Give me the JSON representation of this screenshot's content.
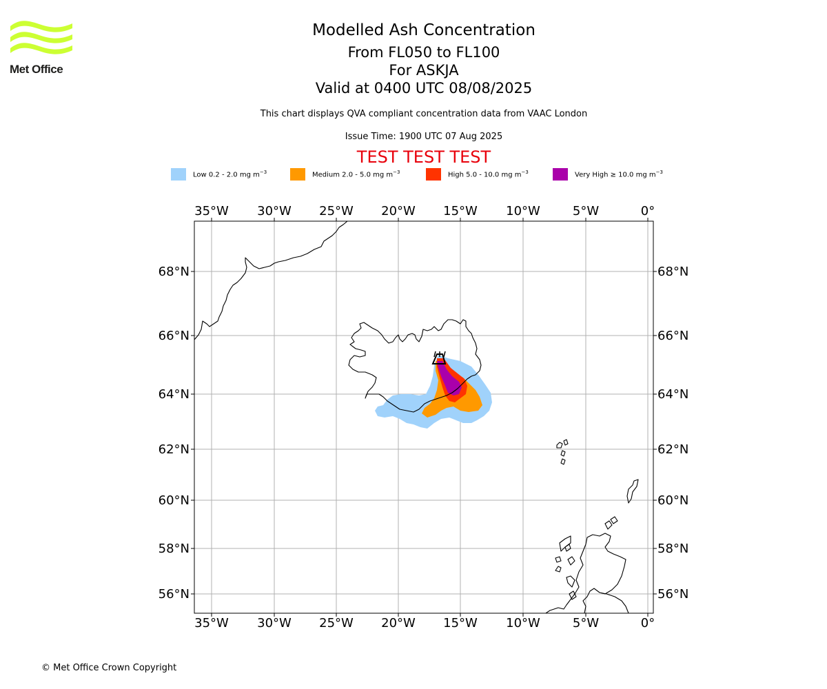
{
  "logo": {
    "text": "Met Office",
    "color": "#ccff33"
  },
  "header": {
    "title": "Modelled Ash Concentration",
    "levels": "From FL050 to FL100",
    "volcano_line": "For ASKJA",
    "valid_line": "Valid at 0400 UTC 08/08/2025",
    "description": "This chart displays QVA compliant concentration data from VAAC London",
    "issue_time": "Issue Time: 1900 UTC 07 Aug 2025",
    "test_banner": "TEST TEST TEST"
  },
  "legend": [
    {
      "label": "Low 0.2 - 2.0 mg m",
      "color": "#a0d2fb"
    },
    {
      "label": "Medium 2.0 - 5.0 mg m",
      "color": "#ff9900"
    },
    {
      "label": "High 5.0 - 10.0 mg m",
      "color": "#ff3300"
    },
    {
      "label": "Very High ≥ 10.0 mg m",
      "color": "#aa00aa"
    }
  ],
  "legend_unit_exponent": "−3",
  "map": {
    "lon_ticks": [
      "35°W",
      "30°W",
      "25°W",
      "20°W",
      "15°W",
      "10°W",
      "5°W",
      "0°"
    ],
    "lat_ticks": [
      "68°N",
      "66°N",
      "64°N",
      "62°N",
      "60°N",
      "58°N",
      "56°N"
    ],
    "volcano_marker": "triangle-volcano-icon",
    "coast_color": "#000000",
    "grid_color": "#b0b0b0"
  },
  "footer": {
    "copyright": "© Met Office Crown Copyright"
  }
}
